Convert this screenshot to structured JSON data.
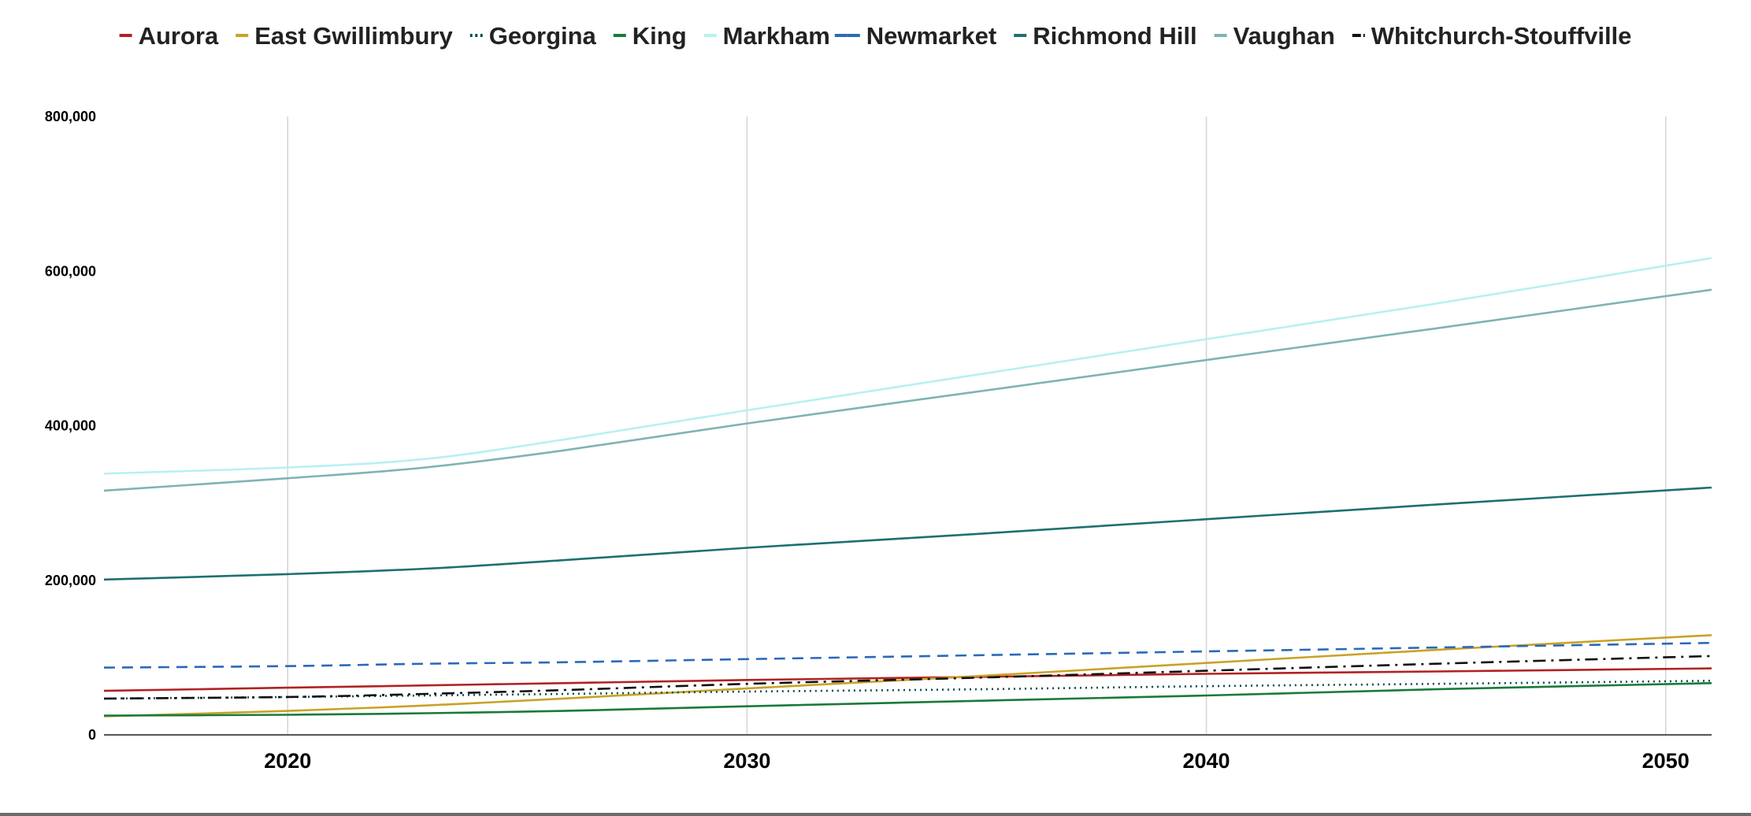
{
  "chart_data": {
    "type": "line",
    "title": "",
    "xlabel": "",
    "ylabel": "",
    "xlim": [
      2016,
      2051
    ],
    "ylim": [
      0,
      800000
    ],
    "x_ticks": [
      2020,
      2030,
      2040,
      2050
    ],
    "x_tick_labels": [
      "2020",
      "2030",
      "2040",
      "2050"
    ],
    "y_ticks": [
      0,
      200000,
      400000,
      600000,
      800000
    ],
    "y_tick_labels": [
      "0",
      "200,000",
      "400,000",
      "600,000",
      "800,000"
    ],
    "grid": "vertical",
    "legend_position": "top",
    "x": [
      2016,
      2020,
      2023,
      2026,
      2030,
      2035,
      2040,
      2045,
      2051
    ],
    "series": [
      {
        "name": "Aurora",
        "color": "#b22222",
        "dash": "solid",
        "values": [
          57000,
          61000,
          64000,
          67000,
          71000,
          75000,
          79000,
          82000,
          86000
        ]
      },
      {
        "name": "East Gwillimbury",
        "color": "#c9a227",
        "dash": "solid",
        "values": [
          24000,
          31000,
          38000,
          47000,
          60000,
          76000,
          93000,
          110000,
          129000
        ]
      },
      {
        "name": "Georgina",
        "color": "#0b4d4d",
        "dash": "dot",
        "values": [
          47000,
          49000,
          51000,
          53000,
          56000,
          59000,
          63000,
          66000,
          70000
        ]
      },
      {
        "name": "King",
        "color": "#1a7a3a",
        "dash": "solid",
        "values": [
          25000,
          26000,
          28000,
          31000,
          37000,
          44000,
          51000,
          59000,
          67000
        ]
      },
      {
        "name": "Markham",
        "color": "#b8f0f2",
        "dash": "solid",
        "values": [
          338000,
          346000,
          357000,
          382000,
          420000,
          466000,
          512000,
          558000,
          617000
        ]
      },
      {
        "name": "Newmarket",
        "color": "#2a6ab8",
        "dash": "dash",
        "values": [
          87000,
          89000,
          92000,
          94000,
          98000,
          103000,
          108000,
          113000,
          119000
        ]
      },
      {
        "name": "Richmond Hill",
        "color": "#1e7070",
        "dash": "solid",
        "values": [
          201000,
          208000,
          215000,
          226000,
          242000,
          260000,
          279000,
          298000,
          320000
        ]
      },
      {
        "name": "Vaughan",
        "color": "#80b3b3",
        "dash": "solid",
        "values": [
          316000,
          332000,
          346000,
          368000,
          403000,
          444000,
          485000,
          526000,
          576000
        ]
      },
      {
        "name": "Whitchurch-Stouffville",
        "color": "#111111",
        "dash": "dashdot",
        "values": [
          47000,
          49000,
          53000,
          58000,
          66000,
          74000,
          83000,
          92000,
          102000
        ]
      }
    ]
  }
}
